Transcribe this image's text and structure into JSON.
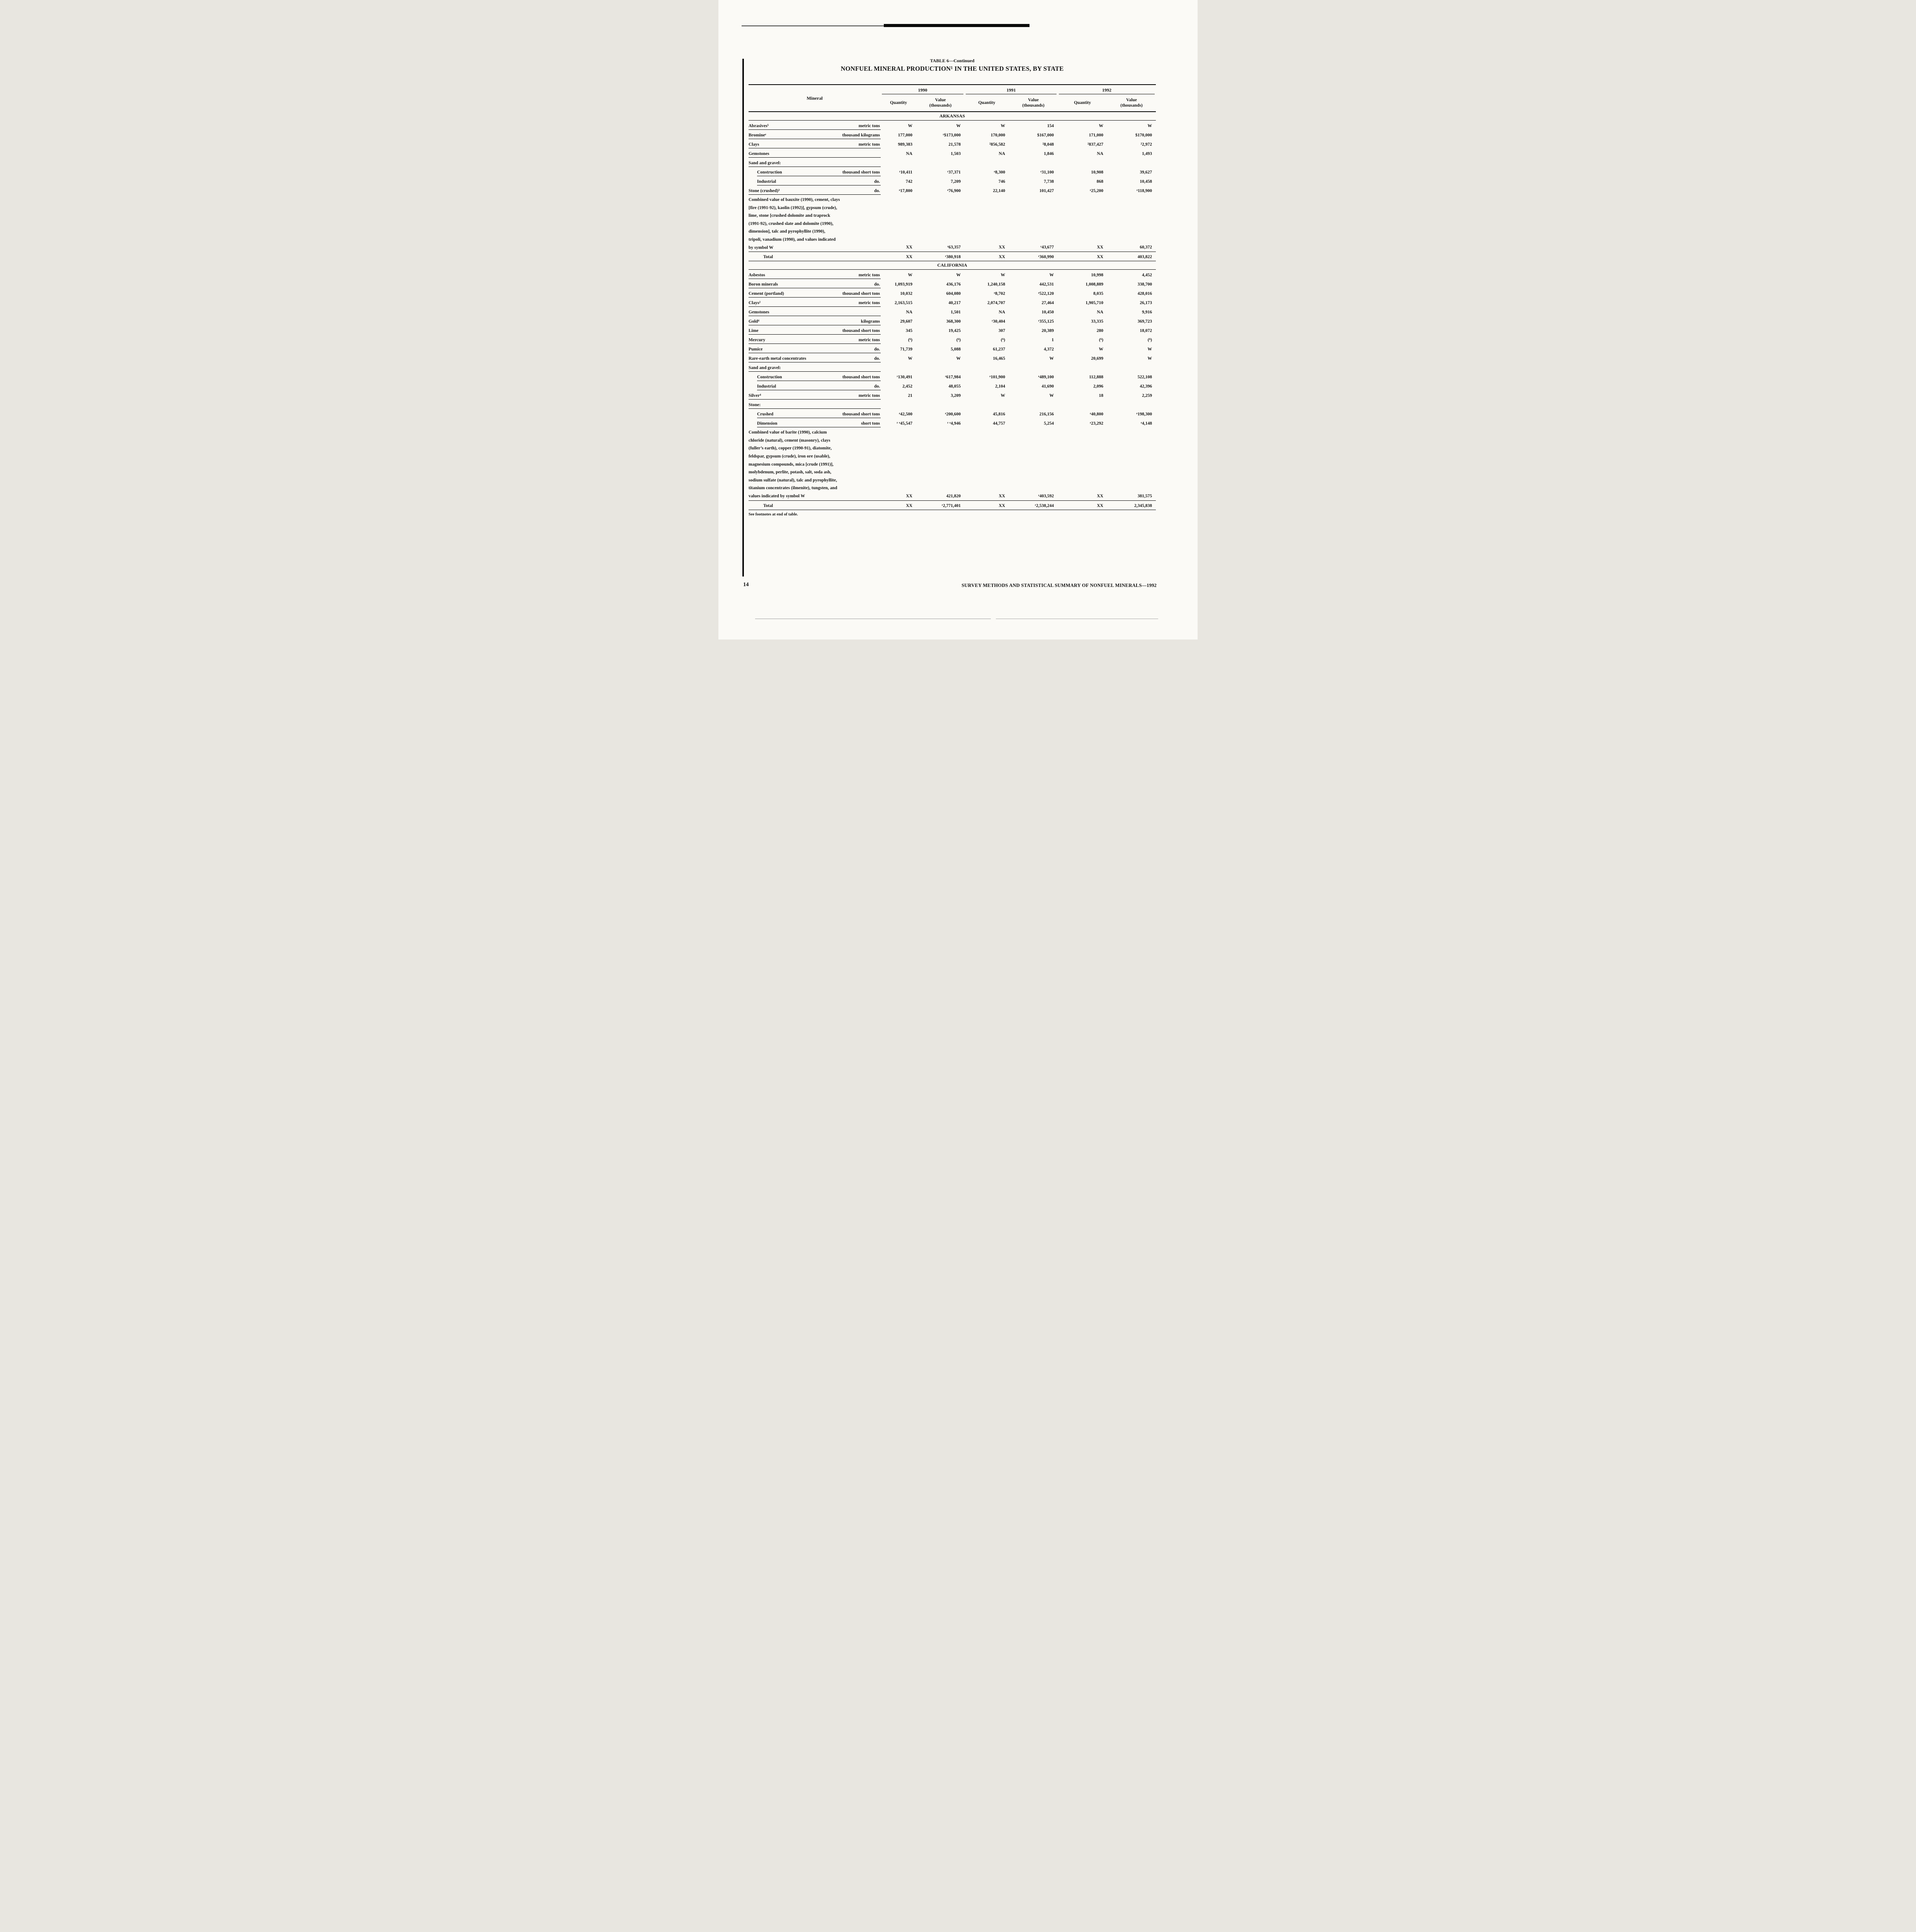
{
  "page": {
    "number": "14",
    "footer": "SURVEY METHODS AND STATISTICAL SUMMARY OF NONFUEL MINERALS—1992",
    "footnote": "See footnotes at end of table."
  },
  "table": {
    "title_line1": "TABLE 6—Continued",
    "title_line2": "NONFUEL MINERAL PRODUCTION¹ IN THE UNITED STATES, BY STATE",
    "col_mineral": "Mineral",
    "years": [
      "1990",
      "1991",
      "1992"
    ],
    "quantity_label": "Quantity",
    "value_label": "Value",
    "thousands_label": "(thousands)",
    "sections": [
      {
        "name": "ARKANSAS",
        "rows": [
          {
            "t": "data",
            "ind": 0,
            "name": "Abrasives⁵",
            "unit": "metric tons",
            "v": [
              "W",
              "W",
              "W",
              "154",
              "W",
              "W"
            ]
          },
          {
            "t": "data",
            "ind": 0,
            "name": "Bromineᵉ",
            "unit": "thousand kilograms",
            "v": [
              "177,000",
              "ʳ$173,000",
              "170,000",
              "$167,000",
              "171,000",
              "$170,000"
            ]
          },
          {
            "t": "data",
            "ind": 0,
            "name": "Clays",
            "unit": "metric tons",
            "v": [
              "989,383",
              "21,578",
              "²856,582",
              "²8,048",
              "²837,427",
              "²2,972"
            ]
          },
          {
            "t": "data",
            "ind": 0,
            "name": "Gemstones",
            "unit": "",
            "v": [
              "NA",
              "1,503",
              "NA",
              "1,846",
              "NA",
              "1,493"
            ]
          },
          {
            "t": "subhead",
            "ind": 0,
            "name": "Sand and gravel:",
            "unit": ""
          },
          {
            "t": "data",
            "ind": 1,
            "name": "Construction",
            "unit": "thousand short tons",
            "v": [
              "ʳ10,411",
              "ʳ37,371",
              "ᵉ8,300",
              "ᵉ31,100",
              "10,908",
              "39,627"
            ]
          },
          {
            "t": "data",
            "ind": 1,
            "name": "Industrial",
            "unit": "do.",
            "v": [
              "742",
              "7,209",
              "746",
              "7,738",
              "868",
              "10,458"
            ]
          },
          {
            "t": "data",
            "ind": 0,
            "name": "Stone (crushed)³",
            "unit": "do.",
            "v": [
              "ᵉ17,800",
              "ᵉ76,900",
              "22,140",
              "101,427",
              "ᵉ25,200",
              "ᵉ118,900"
            ]
          },
          {
            "t": "combined",
            "lines": [
              "Combined value of bauxite (1990), cement, clays",
              "[fire (1991-92), kaolin (1992)], gypsum (crude),",
              "lime, stone [crushed dolomite and traprock",
              "(1991-92), crushed slate and dolomite (1990),",
              "dimension], talc and pyrophyllite (1990),",
              "tripoli, vanadium (1990), and values indicated",
              "by symbol W"
            ],
            "v": [
              "XX",
              "ʳ63,357",
              "XX",
              "ʳ43,677",
              "XX",
              "60,372"
            ]
          },
          {
            "t": "total",
            "ind": 0,
            "name": "Total",
            "unit": "",
            "v": [
              "XX",
              "ʳ380,918",
              "XX",
              "ʳ360,990",
              "XX",
              "403,822"
            ]
          }
        ]
      },
      {
        "name": "CALIFORNIA",
        "rows": [
          {
            "t": "data",
            "ind": 0,
            "name": "Asbestos",
            "unit": "metric tons",
            "v": [
              "W",
              "W",
              "W",
              "W",
              "10,998",
              "4,452"
            ]
          },
          {
            "t": "data",
            "ind": 0,
            "name": "Boron minerals",
            "unit": "do.",
            "v": [
              "1,093,919",
              "436,176",
              "1,240,158",
              "442,531",
              "1,008,889",
              "338,700"
            ]
          },
          {
            "t": "data",
            "ind": 0,
            "name": "Cement (portland)",
            "unit": "thousand short tons",
            "v": [
              "10,032",
              "604,080",
              "ᵉ8,702",
              "ᵉ522,120",
              "8,035",
              "428,016"
            ]
          },
          {
            "t": "data",
            "ind": 0,
            "name": "Clays²",
            "unit": "metric tons",
            "v": [
              "2,163,515",
              "40,217",
              "2,074,707",
              "27,464",
              "1,905,710",
              "26,173"
            ]
          },
          {
            "t": "data",
            "ind": 0,
            "name": "Gemstones",
            "unit": "",
            "v": [
              "NA",
              "1,501",
              "NA",
              "10,450",
              "NA",
              "9,916"
            ]
          },
          {
            "t": "data",
            "ind": 0,
            "name": "Gold⁴",
            "unit": "kilograms",
            "v": [
              "29,607",
              "368,300",
              "ʳ30,404",
              "ʳ355,125",
              "33,335",
              "369,723"
            ]
          },
          {
            "t": "data",
            "ind": 0,
            "name": "Lime",
            "unit": "thousand short tons",
            "v": [
              "345",
              "19,425",
              "307",
              "20,389",
              "280",
              "18,072"
            ]
          },
          {
            "t": "data",
            "ind": 0,
            "name": "Mercury",
            "unit": "metric tons",
            "v": [
              "(⁶)",
              "(⁶)",
              "(⁶)",
              "1",
              "(⁶)",
              "(⁶)"
            ]
          },
          {
            "t": "data",
            "ind": 0,
            "name": "Pumice",
            "unit": "do.",
            "v": [
              "71,739",
              "5,088",
              "61,237",
              "4,372",
              "W",
              "W"
            ]
          },
          {
            "t": "data",
            "ind": 0,
            "name": "Rare-earth metal concentrates",
            "unit": "do.",
            "v": [
              "W",
              "W",
              "16,465",
              "W",
              "20,699",
              "W"
            ]
          },
          {
            "t": "subhead",
            "ind": 0,
            "name": "Sand and gravel:",
            "unit": ""
          },
          {
            "t": "data",
            "ind": 1,
            "name": "Construction",
            "unit": "thousand short tons",
            "v": [
              "ʳ130,491",
              "ʳ617,984",
              "ᵉ101,900",
              "ᵉ489,100",
              "112,888",
              "522,108"
            ]
          },
          {
            "t": "data",
            "ind": 1,
            "name": "Industrial",
            "unit": "do.",
            "v": [
              "2,452",
              "48,055",
              "2,104",
              "41,690",
              "2,096",
              "42,396"
            ]
          },
          {
            "t": "data",
            "ind": 0,
            "name": "Silver⁴",
            "unit": "metric tons",
            "v": [
              "21",
              "3,209",
              "W",
              "W",
              "18",
              "2,259"
            ]
          },
          {
            "t": "subhead",
            "ind": 0,
            "name": "Stone:",
            "unit": ""
          },
          {
            "t": "data",
            "ind": 1,
            "name": "Crushed",
            "unit": "thousand short tons",
            "v": [
              "ᵉ42,500",
              "ᵉ200,600",
              "45,816",
              "216,156",
              "ᵉ40,800",
              "ᵉ198,300"
            ]
          },
          {
            "t": "data",
            "ind": 1,
            "name": "Dimension",
            "unit": "short tons",
            "v": [
              "ʳ ᵉ45,547",
              "ʳ ᵉ4,946",
              "44,757",
              "5,254",
              "ᵉ23,292",
              "ᵉ4,148"
            ]
          },
          {
            "t": "combined",
            "lines": [
              "Combined value of barite (1990), calcium",
              "chloride (natural), cement (masonry), clays",
              "(fuller’s earth), copper (1990-91), diatomite,",
              "feldspar, gypsum (crude), iron ore (usable),",
              "magnesium compounds, mica [crude (1991)],",
              "molybdenum, perlite, potash, salt, soda ash,",
              "sodium sulfate (natural), talc and pyrophyllite,",
              "titanium concentrates (ilmenite), tungsten, and",
              "values indicated by symbol W"
            ],
            "v": [
              "XX",
              "421,820",
              "XX",
              "ʳ403,592",
              "XX",
              "381,575"
            ]
          },
          {
            "t": "total",
            "ind": 0,
            "name": "Total",
            "unit": "",
            "v": [
              "XX",
              "ʳ2,771,401",
              "XX",
              "ʳ2,538,244",
              "XX",
              "2,345,838"
            ]
          }
        ]
      }
    ]
  }
}
